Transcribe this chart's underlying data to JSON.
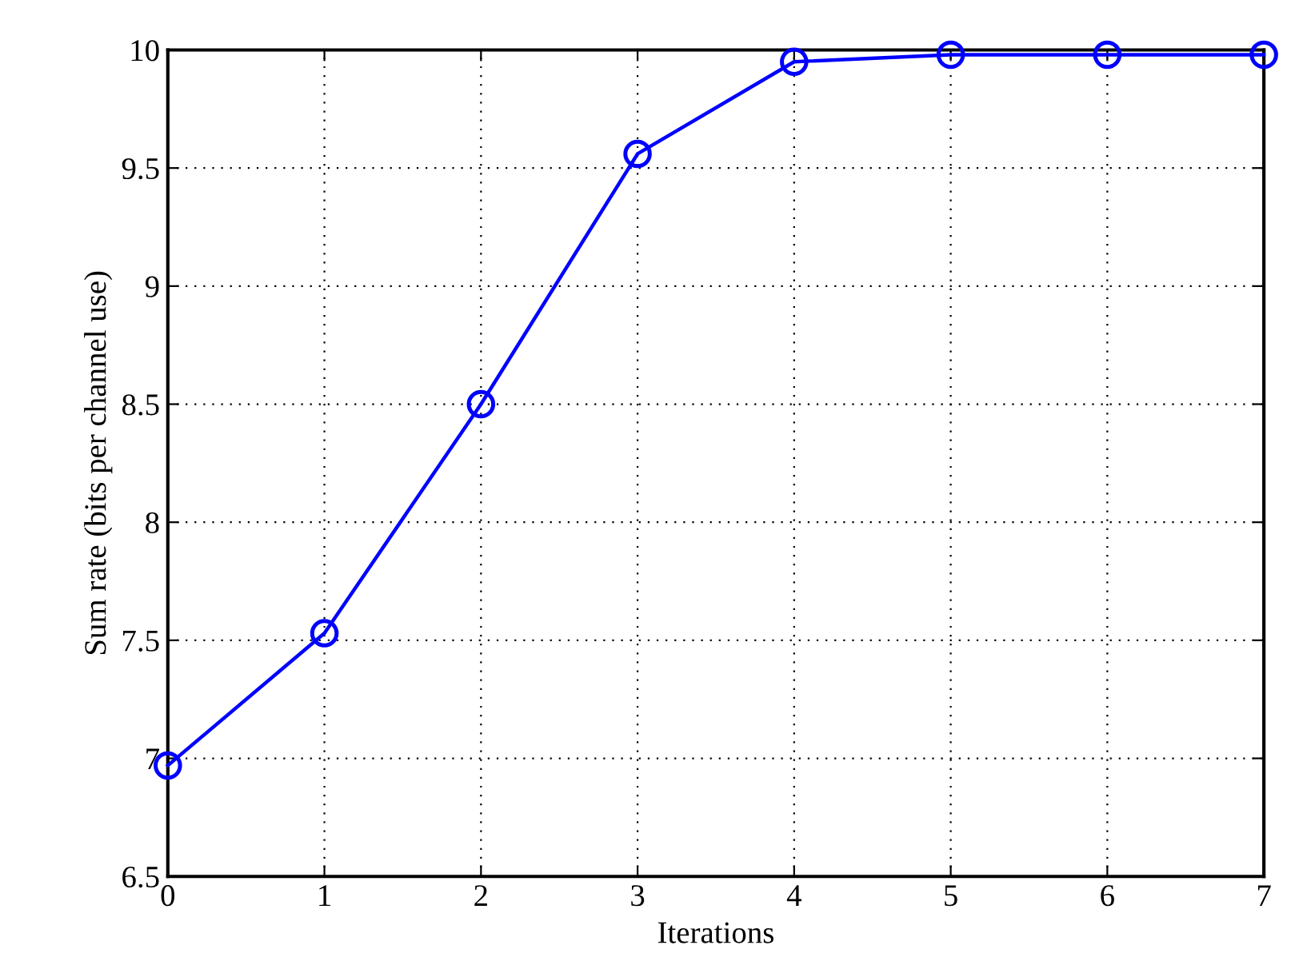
{
  "chart_data": {
    "type": "line",
    "xlabel": "Iterations",
    "ylabel": "Sum rate (bits per channel use)",
    "x": [
      0,
      1,
      2,
      3,
      4,
      5,
      6,
      7
    ],
    "series": [
      {
        "color": "#0000ff",
        "values": [
          6.97,
          7.53,
          8.5,
          9.56,
          9.95,
          9.98,
          9.98,
          9.98
        ]
      }
    ],
    "xlim": [
      0,
      7
    ],
    "xticks": [
      0,
      1,
      2,
      3,
      4,
      5,
      6,
      7
    ],
    "ylim": [
      6.5,
      10
    ],
    "yticks": [
      6.5,
      7,
      7.5,
      8,
      8.5,
      9,
      9.5,
      10
    ],
    "grid": true,
    "marker": "circle",
    "line_style": "solid"
  }
}
